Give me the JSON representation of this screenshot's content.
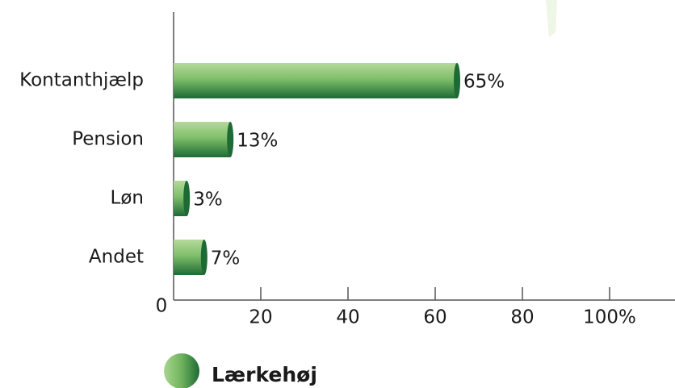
{
  "chart_data": {
    "type": "bar",
    "orientation": "horizontal",
    "categories": [
      "Kontanthjælp",
      "Pension",
      "Løn",
      "Andet"
    ],
    "series": [
      {
        "name": "Lærkehøj",
        "color": "#2e7d3e",
        "values": [
          65,
          13,
          3,
          7
        ],
        "value_labels": [
          "65%",
          "13%",
          "3%",
          "7%"
        ]
      }
    ],
    "xlim": [
      0,
      115
    ],
    "xticks": [
      0,
      20,
      40,
      60,
      80,
      {
        "value": 100,
        "label": "100%"
      }
    ]
  }
}
